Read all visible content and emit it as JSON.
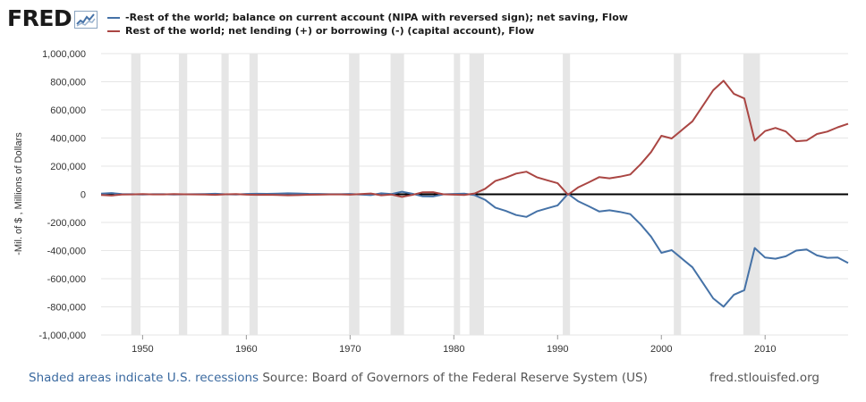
{
  "header": {
    "logo_text": "FRED",
    "logo_icon": "chart-line-icon"
  },
  "legend": {
    "series1": "-Rest of the world; balance on current account (NIPA with reversed sign); net saving, Flow",
    "series2": "Rest of the world; net lending (+) or borrowing (-) (capital account), Flow"
  },
  "footer": {
    "recessions_note": "Shaded areas indicate U.S. recessions",
    "source": "Source: Board of Governors of the Federal Reserve System (US)",
    "site": "fred.stlouisfed.org"
  },
  "colors": {
    "series1": "#4572a7",
    "series2": "#aa4643",
    "recession": "#e6e6e6",
    "zero_line": "#000000"
  },
  "chart_data": {
    "type": "line",
    "ylabel": "-Mil. of $ , Millions of Dollars",
    "xlim": [
      1946,
      2018
    ],
    "ylim": [
      -1000000,
      1000000
    ],
    "yticks": [
      -1000000,
      -800000,
      -600000,
      -400000,
      -200000,
      0,
      200000,
      400000,
      600000,
      800000,
      1000000
    ],
    "ytick_labels": [
      "-1,000,000",
      "-800,000",
      "-600,000",
      "-400,000",
      "-200,000",
      "0",
      "200,000",
      "400,000",
      "600,000",
      "800,000",
      "1,000,000"
    ],
    "xticks": [
      1950,
      1960,
      1970,
      1980,
      1990,
      2000,
      2010
    ],
    "xtick_labels": [
      "1950",
      "1960",
      "1970",
      "1980",
      "1990",
      "2000",
      "2010"
    ],
    "recessions": [
      [
        1948.9,
        1949.8
      ],
      [
        1953.5,
        1954.3
      ],
      [
        1957.6,
        1958.3
      ],
      [
        1960.3,
        1961.1
      ],
      [
        1969.9,
        1970.9
      ],
      [
        1973.9,
        1975.2
      ],
      [
        1980.0,
        1980.6
      ],
      [
        1981.5,
        1982.9
      ],
      [
        1990.5,
        1991.2
      ],
      [
        2001.2,
        2001.9
      ],
      [
        2007.9,
        2009.5
      ]
    ],
    "x": [
      1946,
      1947,
      1948,
      1949,
      1950,
      1951,
      1952,
      1953,
      1954,
      1955,
      1956,
      1957,
      1958,
      1959,
      1960,
      1961,
      1962,
      1963,
      1964,
      1965,
      1966,
      1967,
      1968,
      1969,
      1970,
      1971,
      1972,
      1973,
      1974,
      1975,
      1976,
      1977,
      1978,
      1979,
      1980,
      1981,
      1982,
      1983,
      1984,
      1985,
      1986,
      1987,
      1988,
      1989,
      1990,
      1991,
      1992,
      1993,
      1994,
      1995,
      1996,
      1997,
      1998,
      1999,
      2000,
      2001,
      2002,
      2003,
      2004,
      2005,
      2006,
      2007,
      2008,
      2009,
      2010,
      2011,
      2012,
      2013,
      2014,
      2015,
      2016,
      2017,
      2018
    ],
    "series": [
      {
        "name": "-Rest of the world; balance on current account (NIPA with reversed sign); net saving, Flow",
        "color": "#4572a7",
        "values": [
          4600,
          9000,
          2000,
          800,
          -1800,
          900,
          600,
          -1300,
          200,
          400,
          2000,
          3800,
          100,
          -1700,
          2800,
          3800,
          3400,
          4400,
          6800,
          5400,
          3000,
          2600,
          600,
          400,
          2300,
          -1400,
          -5800,
          7100,
          2000,
          18100,
          4300,
          -14300,
          -15100,
          -300,
          2300,
          5000,
          -5500,
          -38700,
          -94300,
          -118200,
          -147200,
          -160700,
          -121200,
          -99500,
          -79000,
          2900,
          -50100,
          -84800,
          -121600,
          -113600,
          -124800,
          -140900,
          -214100,
          -300000,
          -416000,
          -396600,
          -457800,
          -518700,
          -629300,
          -739800,
          -798500,
          -713400,
          -681300,
          -381600,
          -449500,
          -457700,
          -440400,
          -400300,
          -392100,
          -434600,
          -451700,
          -449100,
          -488500
        ]
      },
      {
        "name": "Rest of the world; net lending (+) or borrowing (-) (capital account), Flow",
        "color": "#aa4643",
        "values": [
          -4600,
          -9000,
          -2000,
          -800,
          1800,
          -900,
          -600,
          1300,
          -200,
          -400,
          -2000,
          -3800,
          -100,
          1700,
          -2800,
          -3800,
          -3400,
          -4400,
          -6800,
          -5400,
          -3000,
          -2600,
          -600,
          -400,
          -2300,
          1400,
          5800,
          -7100,
          -2000,
          -18100,
          -4300,
          14300,
          15100,
          300,
          -2300,
          -5000,
          5500,
          38700,
          94300,
          118200,
          147200,
          160700,
          121200,
          99500,
          79000,
          -2900,
          50100,
          84800,
          121600,
          113600,
          124800,
          140900,
          214100,
          300000,
          416000,
          396600,
          457800,
          518700,
          629300,
          739800,
          806700,
          713400,
          681300,
          381600,
          449500,
          472000,
          446500,
          377400,
          382100,
          428500,
          445800,
          476000,
          500800
        ]
      }
    ]
  }
}
